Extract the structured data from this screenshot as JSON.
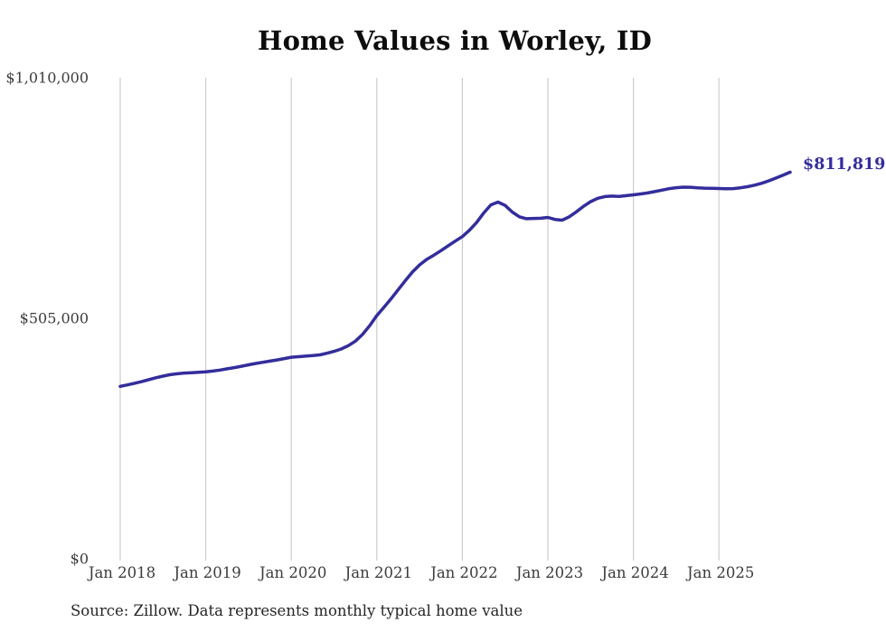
{
  "title": "Home Values in Worley, ID",
  "source_note": "Source: Zillow. Data represents monthly typical home value",
  "end_label": "$811,819",
  "colors": {
    "line": "#332d9b",
    "end_label": "#332d9b",
    "grid": "#cdcdcd",
    "axis_text": "#3c3c3c",
    "title_text": "#0d0d0d",
    "source_text": "#262626",
    "background": "#ffffff"
  },
  "chart_data": {
    "type": "line",
    "title": "Home Values in Worley, ID",
    "xlabel": "",
    "ylabel": "",
    "legend": "none",
    "grid": "vertical-only",
    "ylim": [
      0,
      1010000
    ],
    "y_ticks": [
      0,
      505000,
      1010000
    ],
    "y_tick_labels": [
      "$0",
      "$505,000",
      "$1,010,000"
    ],
    "x_tick_labels": [
      "Jan 2018",
      "Jan 2019",
      "Jan 2020",
      "Jan 2021",
      "Jan 2022",
      "Jan 2023",
      "Jan 2024",
      "Jan 2025"
    ],
    "x_start_month": "2018-01",
    "x_end_month": "2025-11",
    "points_per_year": 12,
    "last_value": 811819,
    "last_value_label": "$811,819",
    "series": [
      {
        "name": "Typical home value",
        "values": [
          362000,
          365000,
          368500,
          372000,
          376000,
          380000,
          383500,
          386500,
          388500,
          390000,
          390800,
          391700,
          392600,
          394200,
          396300,
          398800,
          401300,
          404200,
          407300,
          410000,
          412500,
          415000,
          417400,
          420300,
          423100,
          424300,
          425400,
          426500,
          428200,
          431500,
          435500,
          440500,
          447500,
          457000,
          471000,
          489500,
          510700,
          528000,
          546000,
          565000,
          584000,
          602000,
          617000,
          628500,
          637500,
          647000,
          657000,
          667000,
          676500,
          690000,
          706000,
          726000,
          743000,
          749000,
          742000,
          728000,
          718000,
          714000,
          714500,
          715000,
          716600,
          712500,
          711000,
          718000,
          728500,
          740000,
          750000,
          757000,
          760500,
          761500,
          761000,
          762500,
          764200,
          766000,
          768200,
          771000,
          774000,
          777000,
          779200,
          780300,
          780000,
          779000,
          778200,
          777800,
          777500,
          776800,
          777300,
          779000,
          781300,
          784500,
          788500,
          793500,
          799500,
          805500,
          811819
        ]
      }
    ]
  }
}
